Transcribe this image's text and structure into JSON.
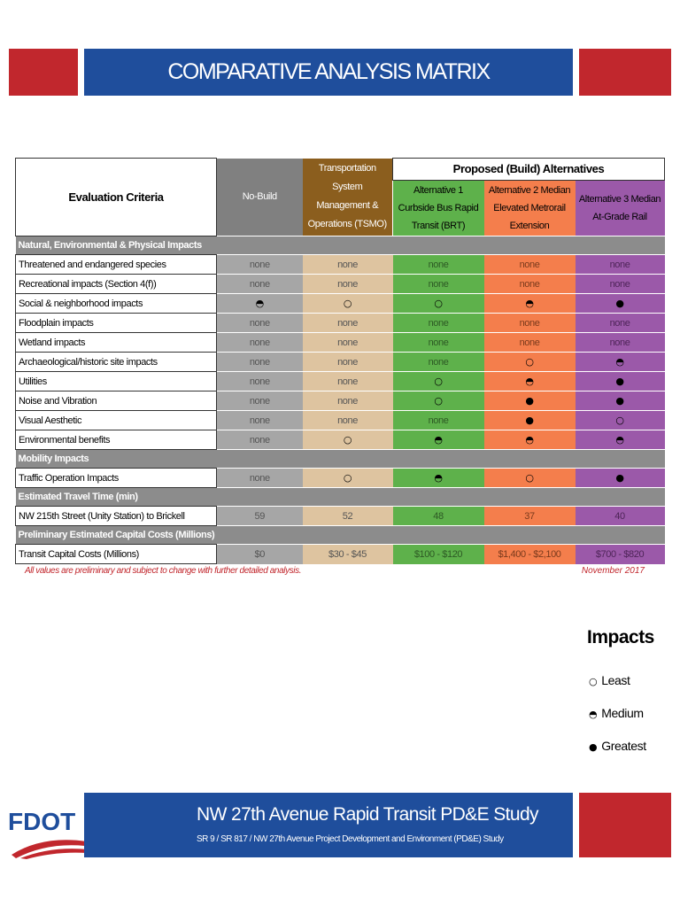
{
  "header": {
    "title": "COMPARATIVE ANALYSIS MATRIX"
  },
  "table": {
    "columns": {
      "criteria": "Evaluation Criteria",
      "no_build": "No-Build",
      "tsmo": "Transportation System Management & Operations (TSMO)",
      "proposed": "Proposed (Build) Alternatives",
      "alternatives": [
        "Alternative 1 Curbside Bus Rapid Transit (BRT)",
        "Alternative 2 Median Elevated Metrorail Extension",
        "Alternative 3 Median At-Grade Rail"
      ]
    },
    "sections": [
      {
        "title": "Natural, Environmental & Physical Impacts",
        "rows": [
          [
            "Threatened and endangered species",
            "none",
            "none",
            "none",
            "none",
            "none"
          ],
          [
            "Recreational impacts (Section 4(f))",
            "none",
            "none",
            "none",
            "none",
            "none"
          ],
          [
            "Social & neighborhood impacts",
            "◓",
            "○",
            "○",
            "◓",
            "●"
          ],
          [
            "Floodplain impacts",
            "none",
            "none",
            "none",
            "none",
            "none"
          ],
          [
            "Wetland impacts",
            "none",
            "none",
            "none",
            "none",
            "none"
          ],
          [
            "Archaeological/historic site impacts",
            "none",
            "none",
            "none",
            "○",
            "◓"
          ],
          [
            "Utilities",
            "none",
            "none",
            "○",
            "◓",
            "●"
          ],
          [
            "Noise and Vibration",
            "none",
            "none",
            "○",
            "●",
            "●"
          ],
          [
            "Visual Aesthetic",
            "none",
            "none",
            "none",
            "●",
            "○"
          ],
          [
            "Environmental benefits",
            "none",
            "○",
            "◓",
            "◓",
            "◓"
          ]
        ]
      },
      {
        "title": "Mobility Impacts",
        "rows": [
          [
            "Traffic Operation Impacts",
            "none",
            "○",
            "◓",
            "○",
            "●"
          ]
        ]
      },
      {
        "title": "Estimated Travel Time (min)",
        "rows": [
          [
            "NW 215th Street (Unity Station) to Brickell",
            59,
            52,
            48,
            37,
            40
          ]
        ]
      },
      {
        "title": "Preliminary Estimated Capital Costs (Millions)",
        "rows": [
          [
            "Transit Capital Costs (Millions)",
            "$0",
            "$30 - $45",
            "$100 - $120",
            "$1,400 - $2,100",
            "$700 - $820"
          ]
        ]
      }
    ]
  },
  "footnote": "All values are preliminary and subject to change with further detailed analysis.",
  "date": "November 2017",
  "legend": {
    "title": "Impacts",
    "items": [
      {
        "symbol": "○",
        "label": "Least"
      },
      {
        "symbol": "◓",
        "label": "Medium"
      },
      {
        "symbol": "●",
        "label": "Greatest"
      }
    ]
  },
  "footer": {
    "logo": "FDOT",
    "title": "NW 27th Avenue Rapid Transit PD&E Study",
    "subtitle": "SR 9 / SR 817 / NW 27th Avenue Project Development and Environment (PD&E) Study"
  }
}
